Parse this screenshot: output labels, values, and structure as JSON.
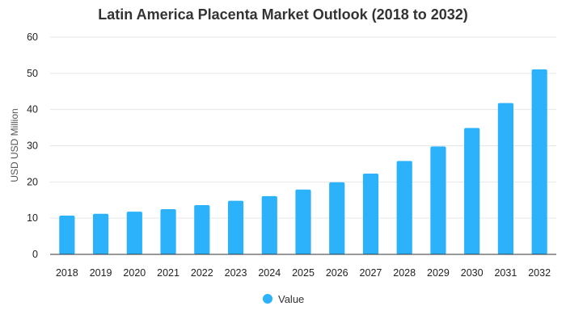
{
  "chart_data": {
    "type": "bar",
    "title": "Latin America Placenta Market Outlook (2018 to 2032)",
    "xlabel": "",
    "ylabel": "USD USD Million",
    "categories": [
      "2018",
      "2019",
      "2020",
      "2021",
      "2022",
      "2023",
      "2024",
      "2025",
      "2026",
      "2027",
      "2028",
      "2029",
      "2030",
      "2031",
      "2032"
    ],
    "series": [
      {
        "name": "Value",
        "values": [
          10.7,
          11.2,
          11.8,
          12.5,
          13.6,
          14.8,
          16.1,
          17.9,
          19.9,
          22.3,
          25.8,
          29.8,
          34.9,
          41.8,
          51.1
        ]
      }
    ],
    "ylim": [
      0,
      60
    ],
    "yticks": [
      0,
      10,
      20,
      30,
      40,
      50,
      60
    ],
    "grid": true,
    "legend": "bottom",
    "colors": {
      "bar": "#2bb2fb"
    }
  }
}
